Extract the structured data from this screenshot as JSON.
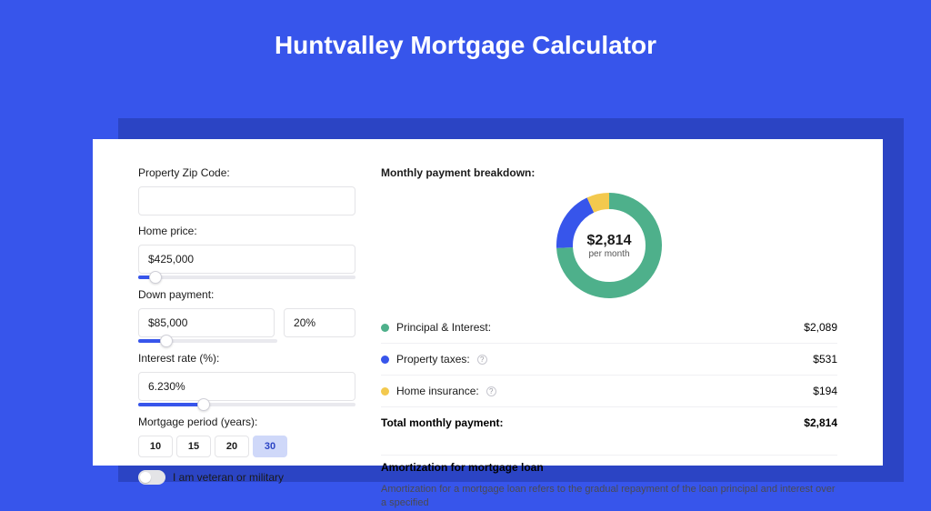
{
  "page": {
    "title": "Huntvalley Mortgage Calculator",
    "background_color": "#3755eb",
    "accent_color": "#3755eb",
    "shadow_color": "#2b44c4",
    "card_color": "#ffffff"
  },
  "form": {
    "zip": {
      "label": "Property Zip Code:",
      "value": ""
    },
    "home_price": {
      "label": "Home price:",
      "value": "$425,000",
      "slider_pct": 8
    },
    "down_payment": {
      "label": "Down payment:",
      "amount": "$85,000",
      "percent": "20%",
      "slider_pct": 20
    },
    "interest_rate": {
      "label": "Interest rate (%):",
      "value": "6.230%",
      "slider_pct": 30
    },
    "period": {
      "label": "Mortgage period (years):",
      "options": [
        "10",
        "15",
        "20",
        "30"
      ],
      "selected": "30"
    },
    "veteran": {
      "label": "I am veteran or military",
      "checked": false
    }
  },
  "breakdown": {
    "title": "Monthly payment breakdown:",
    "center_amount": "$2,814",
    "center_sub": "per month",
    "donut": {
      "slices": [
        {
          "label": "Principal & Interest",
          "value": 2089,
          "color": "#4eb08b",
          "pct": 74.2
        },
        {
          "label": "Property taxes",
          "value": 531,
          "color": "#3755eb",
          "pct": 18.9
        },
        {
          "label": "Home insurance",
          "value": 194,
          "color": "#f3c94e",
          "pct": 6.9
        }
      ],
      "thickness": 18,
      "radius": 58
    },
    "items": [
      {
        "label": "Principal & Interest:",
        "amount": "$2,089",
        "color": "#4eb08b",
        "info": false
      },
      {
        "label": "Property taxes:",
        "amount": "$531",
        "color": "#3755eb",
        "info": true
      },
      {
        "label": "Home insurance:",
        "amount": "$194",
        "color": "#f3c94e",
        "info": true
      }
    ],
    "total_label": "Total monthly payment:",
    "total_amount": "$2,814"
  },
  "amortization": {
    "title": "Amortization for mortgage loan",
    "body": "Amortization for a mortgage loan refers to the gradual repayment of the loan principal and interest over a specified"
  }
}
